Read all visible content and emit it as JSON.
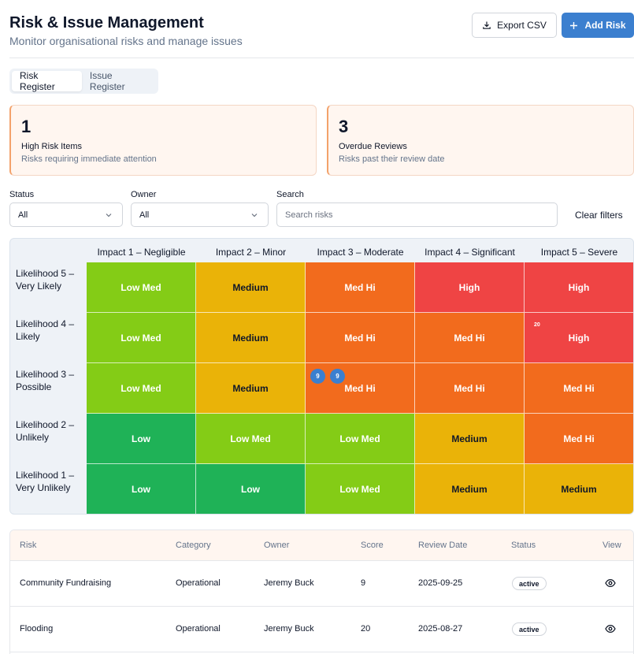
{
  "header": {
    "title": "Risk & Issue Management",
    "subtitle": "Monitor organisational risks and manage issues",
    "export_label": "Export CSV",
    "add_label": "Add Risk"
  },
  "tabs": [
    {
      "label": "Risk Register",
      "active": true
    },
    {
      "label": "Issue Register",
      "active": false
    }
  ],
  "cards": [
    {
      "value": "1",
      "label": "High Risk Items",
      "sub": "Risks requiring immediate attention"
    },
    {
      "value": "3",
      "label": "Overdue Reviews",
      "sub": "Risks past their review date"
    }
  ],
  "filters": {
    "status_label": "Status",
    "status_value": "All",
    "owner_label": "Owner",
    "owner_value": "All",
    "search_label": "Search",
    "search_placeholder": "Search risks",
    "clear_label": "Clear filters"
  },
  "matrix": {
    "impacts": [
      "Impact 1 – Negligible",
      "Impact 2 – Minor",
      "Impact 3 – Moderate",
      "Impact 4 – Significant",
      "Impact 5 – Severe"
    ],
    "likelihoods": [
      "Likelihood 5 – Very Likely",
      "Likelihood 4 – Likely",
      "Likelihood 3 – Possible",
      "Likelihood 2 – Unlikely",
      "Likelihood 1 – Very Unlikely"
    ],
    "rows": [
      [
        "Low Med",
        "Medium",
        "Med Hi",
        "High",
        "High"
      ],
      [
        "Low Med",
        "Medium",
        "Med Hi",
        "Med Hi",
        "High"
      ],
      [
        "Low Med",
        "Medium",
        "Med Hi",
        "Med Hi",
        "Med Hi"
      ],
      [
        "Low",
        "Low Med",
        "Low Med",
        "Medium",
        "Med Hi"
      ],
      [
        "Low",
        "Low",
        "Low Med",
        "Medium",
        "Medium"
      ]
    ],
    "markers": {
      "dot1": "9",
      "dot2": "9",
      "mini": "20"
    }
  },
  "colors": {
    "Low": "#1fb257",
    "Low Med": "#84cc16",
    "Medium": "#eab308",
    "Med Hi": "#f26b1d",
    "High": "#ef4444",
    "accent": "#3b7fcf"
  },
  "table": {
    "headers": [
      "Risk",
      "Category",
      "Owner",
      "Score",
      "Review Date",
      "Status",
      "View"
    ],
    "rows": [
      {
        "risk": "Community Fundraising",
        "category": "Operational",
        "owner": "Jeremy Buck",
        "score": "9",
        "review": "2025-09-25",
        "status": "active"
      },
      {
        "risk": "Flooding",
        "category": "Operational",
        "owner": "Jeremy Buck",
        "score": "20",
        "review": "2025-08-27",
        "status": "active"
      }
    ]
  },
  "icons": [
    "download-icon",
    "plus-icon",
    "chevron-down-icon",
    "eye-icon"
  ]
}
